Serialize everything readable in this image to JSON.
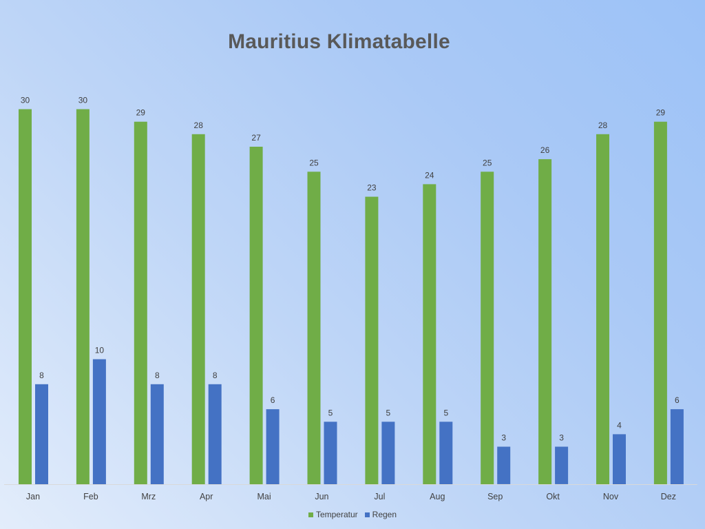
{
  "chart_data": {
    "type": "bar",
    "title": "Mauritius Klimatabelle",
    "categories": [
      "Jan",
      "Feb",
      "Mrz",
      "Apr",
      "Mai",
      "Jun",
      "Jul",
      "Aug",
      "Sep",
      "Okt",
      "Nov",
      "Dez"
    ],
    "series": [
      {
        "name": "Temperatur",
        "color": "#70ad47",
        "values": [
          30,
          30,
          29,
          28,
          27,
          25,
          23,
          24,
          25,
          26,
          28,
          29
        ]
      },
      {
        "name": "Regen",
        "color": "#4472c4",
        "values": [
          8,
          10,
          8,
          8,
          6,
          5,
          5,
          5,
          3,
          3,
          4,
          6
        ]
      }
    ],
    "xlabel": "",
    "ylabel": "",
    "ylim": [
      0,
      30
    ],
    "grid": false,
    "legend": "bottom",
    "data_labels": true,
    "background": [
      "#e3edfb",
      "#9cc2f7"
    ]
  }
}
